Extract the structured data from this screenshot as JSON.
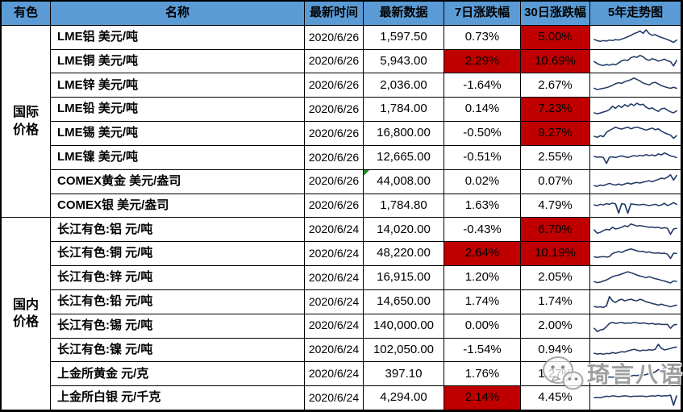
{
  "colors": {
    "header_bg": "#5B9BD5",
    "red_bg": "#C00000",
    "sparkline": "#1F3864",
    "border": "#000000",
    "corner_green": "#1E8C1E"
  },
  "watermark": {
    "text": "琦言八语",
    "icon": "wechat-icon"
  },
  "chart_data": {
    "type": "table",
    "columns": [
      "有色",
      "名称",
      "最新时间",
      "最新数据",
      "7日涨跌幅",
      "30日涨跌幅",
      "5年走势图"
    ],
    "groups": [
      {
        "label": "国际价格",
        "rows": [
          {
            "name": "LME铝 美元/吨",
            "date": "2020/6/26",
            "value": "1,597.50",
            "chg7": "0.73%",
            "chg7_red": false,
            "chg30": "5.00%",
            "chg30_red": true,
            "corner": false,
            "spark": [
              0.38,
              0.3,
              0.26,
              0.31,
              0.28,
              0.34,
              0.31,
              0.37,
              0.34,
              0.4,
              0.46,
              0.54,
              0.62,
              0.73,
              0.79,
              0.89,
              0.75,
              0.96,
              0.73,
              0.63,
              0.67,
              0.57,
              0.5,
              0.44,
              0.37,
              0.29,
              0.2,
              0.34
            ]
          },
          {
            "name": "LME铜 美元/吨",
            "date": "2020/6/26",
            "value": "5,943.00",
            "chg7": "2.29%",
            "chg7_red": true,
            "chg30": "10.69%",
            "chg30_red": true,
            "corner": false,
            "spark": [
              0.5,
              0.38,
              0.3,
              0.26,
              0.33,
              0.28,
              0.35,
              0.31,
              0.42,
              0.55,
              0.6,
              0.57,
              0.74,
              0.8,
              0.76,
              0.88,
              0.8,
              0.64,
              0.58,
              0.68,
              0.62,
              0.53,
              0.58,
              0.65,
              0.55,
              0.5,
              0.24,
              0.58
            ]
          },
          {
            "name": "LME锌 美元/吨",
            "date": "2020/6/26",
            "value": "2,036.00",
            "chg7": "-1.64%",
            "chg7_red": false,
            "chg30": "2.67%",
            "chg30_red": false,
            "corner": false,
            "spark": [
              0.3,
              0.22,
              0.26,
              0.3,
              0.34,
              0.4,
              0.48,
              0.58,
              0.64,
              0.6,
              0.7,
              0.76,
              0.82,
              0.92,
              0.84,
              0.74,
              0.62,
              0.56,
              0.5,
              0.62,
              0.66,
              0.56,
              0.46,
              0.4,
              0.34,
              0.3,
              0.36,
              0.3
            ]
          },
          {
            "name": "LME铅 美元/吨",
            "date": "2020/6/26",
            "value": "1,784.00",
            "chg7": "0.14%",
            "chg7_red": false,
            "chg30": "7.23%",
            "chg30_red": true,
            "corner": false,
            "spark": [
              0.28,
              0.22,
              0.27,
              0.33,
              0.38,
              0.48,
              0.68,
              0.55,
              0.72,
              0.6,
              0.78,
              0.66,
              0.82,
              0.72,
              0.86,
              0.76,
              0.8,
              0.62,
              0.52,
              0.58,
              0.46,
              0.36,
              0.52,
              0.56,
              0.44,
              0.34,
              0.28,
              0.4
            ]
          },
          {
            "name": "LME锡 美元/吨",
            "date": "2020/6/26",
            "value": "16,800.00",
            "chg7": "-0.50%",
            "chg7_red": false,
            "chg30": "9.27%",
            "chg30_red": true,
            "corner": false,
            "spark": [
              0.32,
              0.26,
              0.36,
              0.3,
              0.56,
              0.68,
              0.78,
              0.88,
              0.8,
              0.76,
              0.82,
              0.88,
              0.78,
              0.84,
              0.88,
              0.82,
              0.76,
              0.7,
              0.76,
              0.82,
              0.72,
              0.78,
              0.64,
              0.54,
              0.46,
              0.4,
              0.2,
              0.36
            ]
          },
          {
            "name": "LME镍 美元/吨",
            "date": "2020/6/26",
            "value": "12,665.00",
            "chg7": "-0.51%",
            "chg7_red": false,
            "chg30": "2.55%",
            "chg30_red": false,
            "corner": false,
            "spark": [
              0.56,
              0.52,
              0.54,
              0.5,
              0.14,
              0.52,
              0.54,
              0.5,
              0.56,
              0.6,
              0.55,
              0.5,
              0.56,
              0.62,
              0.58,
              0.64,
              0.6,
              0.68,
              0.62,
              0.66,
              0.6,
              0.72,
              0.66,
              0.78,
              0.7,
              0.6,
              0.56,
              0.5
            ]
          },
          {
            "name": "COMEX黄金 美元/盎司",
            "date": "2020/6/26",
            "value": "44,008.00",
            "chg7": "0.02%",
            "chg7_red": false,
            "chg30": "0.07%",
            "chg30_red": false,
            "corner": true,
            "spark": [
              0.26,
              0.22,
              0.3,
              0.26,
              0.34,
              0.4,
              0.34,
              0.3,
              0.36,
              0.3,
              0.36,
              0.42,
              0.36,
              0.42,
              0.46,
              0.42,
              0.48,
              0.52,
              0.56,
              0.5,
              0.58,
              0.64,
              0.72,
              0.68,
              0.78,
              0.92,
              0.6,
              0.88
            ]
          },
          {
            "name": "COMEX银 美元/盎司",
            "date": "2020/6/26",
            "value": "1,784.80",
            "chg7": "1.63%",
            "chg7_red": false,
            "chg30": "4.79%",
            "chg30_red": false,
            "corner": false,
            "spark": [
              0.56,
              0.52,
              0.6,
              0.56,
              0.64,
              0.6,
              0.68,
              0.62,
              0.06,
              0.64,
              0.6,
              0.06,
              0.62,
              0.6,
              0.58,
              0.56,
              0.6,
              0.56,
              0.52,
              0.56,
              0.6,
              0.52,
              0.56,
              0.66,
              0.52,
              0.6,
              0.7,
              0.6
            ]
          }
        ]
      },
      {
        "label": "国内价格",
        "rows": [
          {
            "name": "长江有色:铝 元/吨",
            "date": "2020/6/24",
            "value": "14,020.00",
            "chg7": "-0.43%",
            "chg7_red": false,
            "chg30": "6.70%",
            "chg30_red": true,
            "corner": false,
            "spark": [
              0.46,
              0.26,
              0.32,
              0.42,
              0.5,
              0.46,
              0.62,
              0.52,
              0.56,
              0.62,
              0.72,
              0.66,
              0.82,
              0.76,
              0.7,
              0.73,
              0.69,
              0.66,
              0.62,
              0.64,
              0.6,
              0.62,
              0.56,
              0.6,
              0.56,
              0.2,
              0.52,
              0.56
            ]
          },
          {
            "name": "长江有色:铜 元/吨",
            "date": "2020/6/24",
            "value": "48,220.00",
            "chg7": "2.64%",
            "chg7_red": true,
            "chg30": "10.19%",
            "chg30_red": true,
            "corner": false,
            "spark": [
              0.3,
              0.26,
              0.29,
              0.31,
              0.28,
              0.31,
              0.5,
              0.56,
              0.62,
              0.56,
              0.66,
              0.72,
              0.78,
              0.72,
              0.66,
              0.62,
              0.64,
              0.56,
              0.6,
              0.54,
              0.52,
              0.54,
              0.5,
              0.52,
              0.46,
              0.2,
              0.52,
              0.5
            ]
          },
          {
            "name": "长江有色:锌 元/吨",
            "date": "2020/6/24",
            "value": "16,915.00",
            "chg7": "1.20%",
            "chg7_red": false,
            "chg30": "2.05%",
            "chg30_red": false,
            "corner": false,
            "spark": [
              0.26,
              0.2,
              0.23,
              0.3,
              0.36,
              0.46,
              0.56,
              0.62,
              0.66,
              0.72,
              0.8,
              0.86,
              0.8,
              0.74,
              0.66,
              0.6,
              0.56,
              0.5,
              0.56,
              0.5,
              0.44,
              0.4,
              0.34,
              0.3,
              0.24,
              0.18,
              0.3,
              0.28
            ]
          },
          {
            "name": "长江有色:铅 元/吨",
            "date": "2020/6/24",
            "value": "14,650.00",
            "chg7": "1.74%",
            "chg7_red": false,
            "chg30": "1.74%",
            "chg30_red": false,
            "corner": false,
            "spark": [
              0.22,
              0.18,
              0.2,
              0.16,
              0.26,
              0.82,
              0.56,
              0.46,
              0.6,
              0.66,
              0.56,
              0.62,
              0.66,
              0.6,
              0.56,
              0.66,
              0.6,
              0.5,
              0.46,
              0.4,
              0.36,
              0.3,
              0.36,
              0.3,
              0.26,
              0.2,
              0.26,
              0.3
            ]
          },
          {
            "name": "长江有色:锡 元/吨",
            "date": "2020/6/24",
            "value": "140,000.00",
            "chg7": "0.00%",
            "chg7_red": false,
            "chg30": "2.00%",
            "chg30_red": false,
            "corner": false,
            "spark": [
              0.36,
              0.16,
              0.26,
              0.3,
              0.46,
              0.66,
              0.72,
              0.66,
              0.69,
              0.72,
              0.66,
              0.69,
              0.67,
              0.72,
              0.69,
              0.66,
              0.69,
              0.66,
              0.63,
              0.66,
              0.61,
              0.63,
              0.61,
              0.59,
              0.61,
              0.36,
              0.56,
              0.6
            ]
          },
          {
            "name": "长江有色:镍 元/吨",
            "date": "2020/6/24",
            "value": "102,050.00",
            "chg7": "-1.54%",
            "chg7_red": false,
            "chg30": "0.94%",
            "chg30_red": false,
            "corner": false,
            "spark": [
              0.32,
              0.27,
              0.3,
              0.26,
              0.31,
              0.29,
              0.36,
              0.31,
              0.36,
              0.41,
              0.39,
              0.46,
              0.51,
              0.56,
              0.51,
              0.46,
              0.51,
              0.49,
              0.53,
              0.51,
              0.56,
              0.86,
              0.62,
              0.52,
              0.56,
              0.61,
              0.66,
              0.7
            ]
          },
          {
            "name": "上金所黄金 元/克",
            "date": "2020/6/24",
            "value": "397.10",
            "chg7": "1.76%",
            "chg7_red": false,
            "chg30": "1.27%",
            "chg30_red": false,
            "corner": false,
            "spark": [
              0.2,
              0.25,
              0.22,
              0.28,
              0.25,
              0.3,
              0.28,
              0.32,
              0.3,
              0.35,
              0.32,
              0.3,
              0.35,
              0.4,
              0.38,
              0.42,
              0.4,
              0.45,
              0.5,
              0.55,
              0.6,
              0.75,
              0.7,
              0.8,
              0.85,
              0.8,
              0.88,
              0.92
            ]
          },
          {
            "name": "上金所白银 元/千克",
            "date": "2020/6/24",
            "value": "4,294.00",
            "chg7": "2.14%",
            "chg7_red": true,
            "chg30": "4.45%",
            "chg30_red": false,
            "corner": false,
            "spark": [
              0.5,
              0.52,
              0.5,
              0.55,
              0.6,
              0.58,
              0.62,
              0.6,
              0.58,
              0.6,
              0.62,
              0.6,
              0.58,
              0.6,
              0.59,
              0.61,
              0.6,
              0.58,
              0.6,
              0.62,
              0.6,
              0.65,
              0.6,
              0.63,
              0.62,
              0.66,
              0.05,
              0.62
            ]
          }
        ]
      }
    ]
  }
}
